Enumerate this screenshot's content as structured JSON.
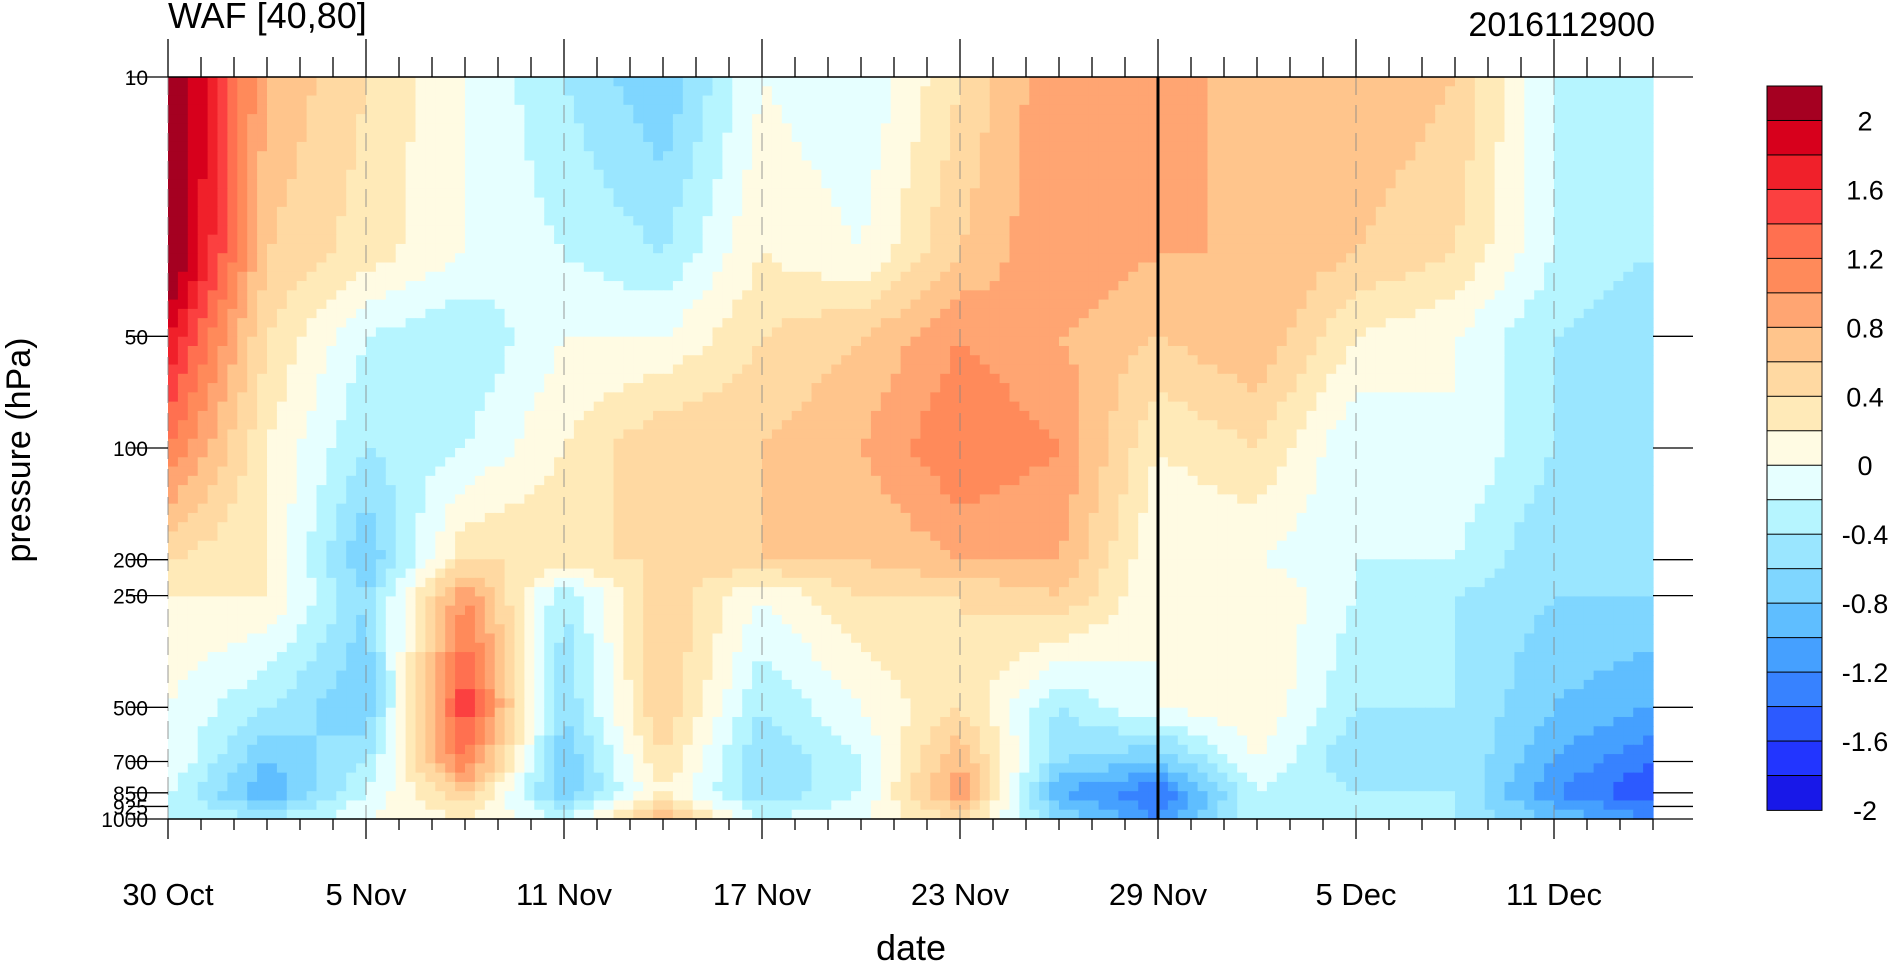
{
  "chart_data": {
    "type": "heatmap",
    "title": "WAF [40,80]",
    "subtitle": "2016112900",
    "xlabel": "date",
    "ylabel": "pressure (hPa)",
    "x_tick_labels": [
      "30 Oct",
      "5 Nov",
      "11 Nov",
      "17 Nov",
      "23 Nov",
      "29 Nov",
      "5 Dec",
      "11 Dec"
    ],
    "y_tick_labels": [
      "10",
      "50",
      "100",
      "200",
      "250",
      "500",
      "700",
      "850",
      "925",
      "1000"
    ],
    "y_levels": [
      10,
      50,
      100,
      200,
      250,
      500,
      700,
      850,
      925,
      1000
    ],
    "x_range_days": [
      0,
      45
    ],
    "y_scale": "log",
    "colorbar": {
      "tick_labels": [
        "2",
        "1.6",
        "1.2",
        "0.8",
        "0.4",
        "0",
        "-0.4",
        "-0.8",
        "-1.2",
        "-1.6",
        "-2"
      ],
      "levels": [
        2.2,
        2.0,
        1.8,
        1.6,
        1.4,
        1.2,
        1.0,
        0.8,
        0.6,
        0.4,
        0.2,
        0.0,
        -0.2,
        -0.4,
        -0.6,
        -0.8,
        -1.0,
        -1.2,
        -1.4,
        -1.6,
        -1.8,
        -2.0
      ],
      "colors": [
        "#a50021",
        "#d7001c",
        "#f0202a",
        "#fb4040",
        "#ff7050",
        "#ff8a5a",
        "#ffa572",
        "#ffc58c",
        "#ffd9a2",
        "#ffeab8",
        "#fffbe3",
        "#e6ffff",
        "#b6f5ff",
        "#9ae6ff",
        "#7fd6ff",
        "#5fbeff",
        "#45a0ff",
        "#3782ff",
        "#2c5aff",
        "#2235ff",
        "#1818e8"
      ]
    },
    "grid": "dashed vertical lines at labeled dates",
    "vertical_marker_date": "29 Nov",
    "grid_data": {
      "days": [
        0,
        3,
        6,
        9,
        12,
        15,
        18,
        21,
        24,
        27,
        30,
        33,
        36,
        39,
        42,
        45
      ],
      "rows": [
        {
          "p": 10,
          "v": [
            2.4,
            0.8,
            0.4,
            0.0,
            -0.4,
            -0.8,
            0.0,
            -0.2,
            0.4,
            1.0,
            1.0,
            0.6,
            0.8,
            0.6,
            -0.2,
            -0.4
          ]
        },
        {
          "p": 30,
          "v": [
            2.4,
            0.6,
            0.3,
            0.0,
            -0.2,
            -0.4,
            0.2,
            0.0,
            0.6,
            1.0,
            0.8,
            0.8,
            0.6,
            0.4,
            -0.2,
            -0.4
          ]
        },
        {
          "p": 50,
          "v": [
            1.8,
            0.4,
            -0.2,
            -0.4,
            0.0,
            0.0,
            0.4,
            0.6,
            1.0,
            0.8,
            0.6,
            0.8,
            0.2,
            0.0,
            -0.4,
            -0.6
          ]
        },
        {
          "p": 100,
          "v": [
            1.2,
            0.2,
            -0.4,
            -0.2,
            0.2,
            0.6,
            0.6,
            0.8,
            1.2,
            1.0,
            0.2,
            0.4,
            -0.2,
            0.0,
            -0.4,
            -0.4
          ]
        },
        {
          "p": 200,
          "v": [
            0.4,
            0.2,
            -0.8,
            0.4,
            0.4,
            0.4,
            0.6,
            0.6,
            0.8,
            0.8,
            0.0,
            0.0,
            -0.2,
            -0.2,
            -0.6,
            -0.6
          ]
        },
        {
          "p": 250,
          "v": [
            0.2,
            0.2,
            -0.6,
            1.0,
            -0.4,
            0.6,
            0.0,
            0.4,
            0.4,
            0.6,
            0.0,
            0.2,
            -0.2,
            -0.4,
            -0.6,
            -0.6
          ]
        },
        {
          "p": 500,
          "v": [
            0.0,
            -0.4,
            -0.8,
            1.6,
            -0.6,
            0.6,
            -0.4,
            0.0,
            0.4,
            -0.4,
            0.0,
            0.2,
            -0.4,
            -0.4,
            -0.8,
            -1.0
          ]
        },
        {
          "p": 700,
          "v": [
            0.0,
            -0.8,
            -0.4,
            1.2,
            -0.8,
            0.4,
            -0.6,
            -0.2,
            0.8,
            -0.6,
            -0.8,
            0.0,
            -0.6,
            -0.4,
            -1.0,
            -1.4
          ]
        },
        {
          "p": 850,
          "v": [
            -0.2,
            -1.0,
            -0.2,
            0.6,
            -0.8,
            0.2,
            -0.6,
            -0.2,
            1.0,
            -1.0,
            -1.4,
            -0.2,
            -0.4,
            -0.4,
            -1.2,
            -1.6
          ]
        },
        {
          "p": 1000,
          "v": [
            -0.2,
            -0.4,
            0.0,
            0.2,
            -0.2,
            0.8,
            -0.2,
            0.0,
            0.4,
            -0.6,
            -1.2,
            -0.2,
            -0.4,
            -0.4,
            -0.8,
            -1.2
          ]
        }
      ]
    }
  }
}
